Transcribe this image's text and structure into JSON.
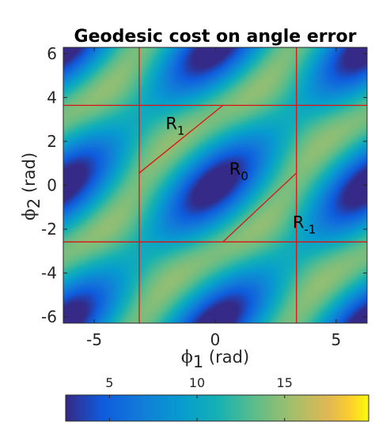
{
  "chart_data": {
    "type": "heatmap",
    "title": "Geodesic cost on angle error",
    "xlabel": {
      "symbol": "ϕ",
      "subscript": "1",
      "unit": "(rad)"
    },
    "ylabel": {
      "symbol": "ϕ",
      "subscript": "2",
      "unit": "(rad)"
    },
    "xlim": [
      -6.28,
      6.28
    ],
    "ylim": [
      -6.28,
      6.28
    ],
    "xticks": [
      -5,
      0,
      5
    ],
    "yticks": [
      -6,
      -4,
      -2,
      0,
      2,
      4,
      6
    ],
    "colormap": "parula",
    "clim": [
      2.5,
      19.8
    ],
    "colorbar": {
      "location": "bottom",
      "ticks": [
        5,
        10,
        15
      ]
    },
    "boundary_lines": {
      "color": "#e01010",
      "vertical_x": [
        -3.14,
        3.36
      ],
      "horizontal_y": [
        3.64,
        -2.58
      ],
      "diagonals": [
        {
          "from": [
            -3.14,
            0.56
          ],
          "to": [
            0.32,
            3.64
          ]
        },
        {
          "from": [
            0.32,
            -2.58
          ],
          "to": [
            3.36,
            0.56
          ]
        }
      ]
    },
    "annotations": [
      {
        "text": "R",
        "sub": "1",
        "x": -2.05,
        "y": 2.55
      },
      {
        "text": "R",
        "sub": "0",
        "x": 0.58,
        "y": 0.48
      },
      {
        "text": "R",
        "sub": "-1",
        "x": 3.2,
        "y": -1.95
      }
    ]
  }
}
